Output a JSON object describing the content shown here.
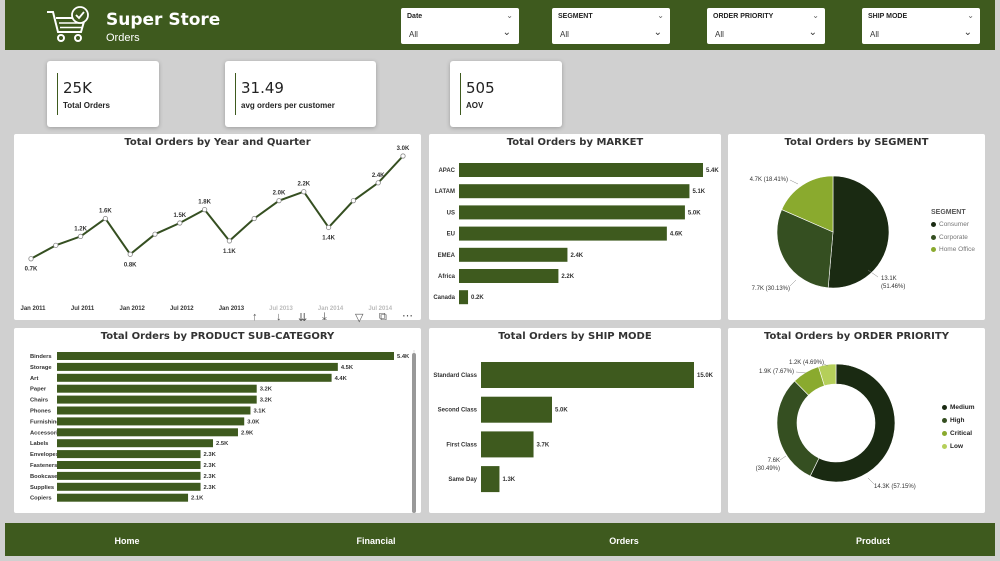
{
  "header": {
    "title": "Super Store",
    "subtitle": "Orders",
    "logo_icon": "cart-check-icon"
  },
  "slicers": [
    {
      "label": "Date",
      "value": "All"
    },
    {
      "label": "SEGMENT",
      "value": "All"
    },
    {
      "label": "ORDER PRIORITY",
      "value": "All"
    },
    {
      "label": "SHIP MODE",
      "value": "All"
    }
  ],
  "kpis": [
    {
      "value": "25K",
      "label": "Total Orders"
    },
    {
      "value": "31.49",
      "label": "avg orders per customer"
    },
    {
      "value": "505",
      "label": "AOV"
    }
  ],
  "colors": {
    "primary": "#3e5a1e",
    "dark": "#1a2a12",
    "mid": "#354f21",
    "light": "#8aaa2e",
    "lighter": "#b5cf5a",
    "bar": "#3e5a1e",
    "background": "#d0d0d0"
  },
  "charts": {
    "year_quarter": {
      "type": "line",
      "title": "Total Orders by Year and Quarter",
      "x_ticks": [
        "Jan 2011",
        "Jul 2011",
        "Jan 2012",
        "Jul 2012",
        "Jan 2013",
        "Jul 2013",
        "Jan 2014",
        "Jul 2014"
      ],
      "points": [
        {
          "v": 0.7,
          "label": "0.7K"
        },
        {
          "v": 1.0,
          "label": ""
        },
        {
          "v": 1.2,
          "label": "1.2K"
        },
        {
          "v": 1.6,
          "label": "1.6K"
        },
        {
          "v": 0.8,
          "label": "0.8K"
        },
        {
          "v": 1.25,
          "label": ""
        },
        {
          "v": 1.5,
          "label": "1.5K"
        },
        {
          "v": 1.8,
          "label": "1.8K"
        },
        {
          "v": 1.1,
          "label": "1.1K"
        },
        {
          "v": 1.6,
          "label": ""
        },
        {
          "v": 2.0,
          "label": "2.0K"
        },
        {
          "v": 2.2,
          "label": "2.2K"
        },
        {
          "v": 1.4,
          "label": "1.4K"
        },
        {
          "v": 2.0,
          "label": ""
        },
        {
          "v": 2.4,
          "label": "2.4K"
        },
        {
          "v": 3.0,
          "label": "3.0K"
        }
      ],
      "ylim": [
        0,
        3.0
      ]
    },
    "market": {
      "type": "bar",
      "title": "Total Orders by MARKET",
      "categories": [
        "APAC",
        "LATAM",
        "US",
        "EU",
        "EMEA",
        "Africa",
        "Canada"
      ],
      "values": [
        5.4,
        5.1,
        5.0,
        4.6,
        2.4,
        2.2,
        0.2
      ],
      "labels": [
        "5.4K",
        "5.1K",
        "5.0K",
        "4.6K",
        "2.4K",
        "2.2K",
        "0.2K"
      ]
    },
    "segment": {
      "type": "pie",
      "title": "Total Orders by SEGMENT",
      "legend_title": "SEGMENT",
      "slices": [
        {
          "name": "Consumer",
          "value": 13.1,
          "pct": 51.46,
          "label": "13.1K",
          "label2": "(51.46%)"
        },
        {
          "name": "Corporate",
          "value": 7.7,
          "pct": 30.13,
          "label": "7.7K (30.13%)",
          "label2": ""
        },
        {
          "name": "Home Office",
          "value": 4.7,
          "pct": 18.41,
          "label": "4.7K (18.41%)",
          "label2": ""
        }
      ]
    },
    "subcategory": {
      "type": "bar",
      "title": "Total Orders by PRODUCT SUB-CATEGORY",
      "categories": [
        "Binders",
        "Storage",
        "Art",
        "Paper",
        "Chairs",
        "Phones",
        "Furnishings",
        "Accessories",
        "Labels",
        "Envelopes",
        "Fasteners",
        "Bookcases",
        "Supplies",
        "Copiers"
      ],
      "values": [
        5.4,
        4.5,
        4.4,
        3.2,
        3.2,
        3.1,
        3.0,
        2.9,
        2.5,
        2.3,
        2.3,
        2.3,
        2.3,
        2.1
      ],
      "labels": [
        "5.4K",
        "4.5K",
        "4.4K",
        "3.2K",
        "3.2K",
        "3.1K",
        "3.0K",
        "2.9K",
        "2.5K",
        "2.3K",
        "2.3K",
        "2.3K",
        "2.3K",
        "2.1K"
      ]
    },
    "ship_mode": {
      "type": "bar",
      "title": "Total Orders by SHIP MODE",
      "categories": [
        "Standard Class",
        "Second Class",
        "First Class",
        "Same Day"
      ],
      "values": [
        15.0,
        5.0,
        3.7,
        1.3
      ],
      "labels": [
        "15.0K",
        "5.0K",
        "3.7K",
        "1.3K"
      ]
    },
    "order_priority": {
      "type": "pie",
      "title": "Total Orders by ORDER PRIORITY",
      "slices": [
        {
          "name": "Medium",
          "value": 14.3,
          "pct": 57.15,
          "label": "14.3K (57.15%)",
          "label2": ""
        },
        {
          "name": "High",
          "value": 7.6,
          "pct": 30.49,
          "label": "7.6K",
          "label2": "(30.49%)"
        },
        {
          "name": "Critical",
          "value": 1.9,
          "pct": 7.67,
          "label": "1.9K (7.67%)",
          "label2": ""
        },
        {
          "name": "Low",
          "value": 1.2,
          "pct": 4.69,
          "label": "1.2K (4.69%)",
          "label2": ""
        }
      ]
    }
  },
  "visual_controls": [
    "arrow-up-icon",
    "arrow-down-icon",
    "drill-down-icon",
    "expand-down-icon",
    "filter-icon",
    "focus-mode-icon",
    "more-options-icon"
  ],
  "footer": {
    "nav": [
      "Home",
      "Financial",
      "Orders",
      "Product"
    ]
  }
}
